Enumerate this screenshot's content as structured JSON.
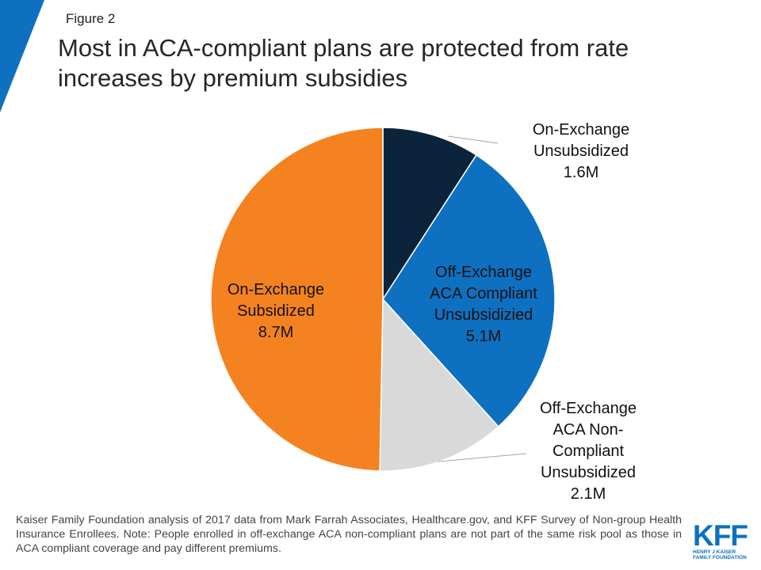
{
  "figure_label": "Figure 2",
  "header": {
    "title": "Most in ACA-compliant plans are protected from rate increases by premium subsidies"
  },
  "chart_data": {
    "type": "pie",
    "title": "Most in ACA-compliant plans are protected from rate increases by premium subsidies",
    "unit": "M",
    "slices": [
      {
        "label_lines": [
          "On-Exchange",
          "Unsubsidized",
          "1.6M"
        ],
        "value": 1.6,
        "color": "#0b243b"
      },
      {
        "label_lines": [
          "Off-Exchange",
          "ACA Compliant",
          "Unsubsidizied",
          "5.1M"
        ],
        "value": 5.1,
        "color": "#0e70c0"
      },
      {
        "label_lines": [
          "Off-Exchange",
          "ACA Non-",
          "Compliant",
          "Unsubsidized",
          "2.1M"
        ],
        "value": 2.1,
        "color": "#d9d9d9"
      },
      {
        "label_lines": [
          "On-Exchange",
          "Subsidized",
          "8.7M"
        ],
        "value": 8.7,
        "color": "#f58220"
      }
    ]
  },
  "footer": {
    "source_note": "Kaiser Family Foundation analysis of 2017 data from Mark Farrah Associates, Healthcare.gov, and KFF Survey of Non-group Health Insurance Enrollees. Note: People enrolled in off-exchange ACA non-compliant plans are not part of the same risk pool as those in ACA compliant coverage and pay different premiums.",
    "logo_mark": "KFF",
    "logo_line1": "HENRY J KAISER",
    "logo_line2": "FAMILY FOUNDATION"
  },
  "colors": {
    "accent": "#0e70c0"
  }
}
